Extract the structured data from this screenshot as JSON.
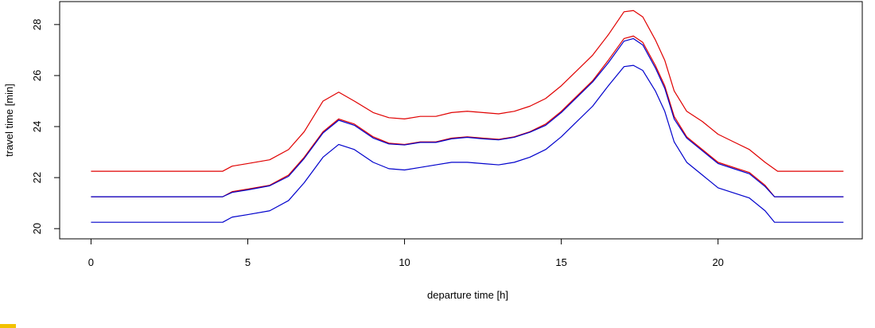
{
  "chart_data": {
    "type": "line",
    "title": "",
    "xlabel": "departure time [h]",
    "ylabel": "travel time [min]",
    "xlim": [
      -1.0,
      24.6
    ],
    "ylim": [
      19.6,
      28.9
    ],
    "xticks": [
      0,
      5,
      10,
      15,
      20
    ],
    "yticks": [
      20,
      22,
      24,
      26,
      28
    ],
    "grid": false,
    "legend": "none",
    "series": [
      {
        "color": "#e00000",
        "x": [
          0,
          4.2,
          4.5,
          5.0,
          5.7,
          6.3,
          6.8,
          7.4,
          7.9,
          8.4,
          9.0,
          9.5,
          10.0,
          10.5,
          11.0,
          11.5,
          12.0,
          12.5,
          13.0,
          13.5,
          14.0,
          14.5,
          15.0,
          15.5,
          16.0,
          16.5,
          17.0,
          17.3,
          17.6,
          18.0,
          18.3,
          18.6,
          19.0,
          19.5,
          20.0,
          20.5,
          21.0,
          21.5,
          21.9,
          24.0
        ],
        "y": [
          22.25,
          22.25,
          22.45,
          22.55,
          22.7,
          23.1,
          23.8,
          25.0,
          25.35,
          25.0,
          24.55,
          24.35,
          24.3,
          24.4,
          24.4,
          24.55,
          24.6,
          24.55,
          24.5,
          24.6,
          24.8,
          25.1,
          25.6,
          26.2,
          26.8,
          27.6,
          28.5,
          28.55,
          28.3,
          27.4,
          26.6,
          25.4,
          24.6,
          24.2,
          23.7,
          23.4,
          23.1,
          22.6,
          22.25,
          22.25
        ]
      },
      {
        "color": "#e00000",
        "x": [
          0,
          4.2,
          4.5,
          5.0,
          5.7,
          6.3,
          6.8,
          7.4,
          7.9,
          8.4,
          9.0,
          9.5,
          10.0,
          10.5,
          11.0,
          11.5,
          12.0,
          12.5,
          13.0,
          13.5,
          14.0,
          14.5,
          15.0,
          15.5,
          16.0,
          16.5,
          17.0,
          17.3,
          17.6,
          18.0,
          18.3,
          18.6,
          19.0,
          19.5,
          20.0,
          20.5,
          21.0,
          21.5,
          21.8,
          24.0
        ],
        "y": [
          21.25,
          21.25,
          21.45,
          21.55,
          21.7,
          22.1,
          22.8,
          23.8,
          24.3,
          24.1,
          23.6,
          23.35,
          23.3,
          23.4,
          23.4,
          23.55,
          23.6,
          23.55,
          23.5,
          23.6,
          23.8,
          24.1,
          24.6,
          25.2,
          25.8,
          26.6,
          27.45,
          27.55,
          27.3,
          26.4,
          25.6,
          24.4,
          23.6,
          23.1,
          22.6,
          22.4,
          22.2,
          21.7,
          21.25,
          21.25
        ]
      },
      {
        "color": "#0000cc",
        "x": [
          0,
          4.2,
          4.5,
          5.0,
          5.7,
          6.3,
          6.8,
          7.4,
          7.9,
          8.4,
          9.0,
          9.5,
          10.0,
          10.5,
          11.0,
          11.5,
          12.0,
          12.5,
          13.0,
          13.5,
          14.0,
          14.5,
          15.0,
          15.5,
          16.0,
          16.5,
          17.0,
          17.3,
          17.6,
          18.0,
          18.3,
          18.6,
          19.0,
          19.5,
          20.0,
          20.5,
          21.0,
          21.5,
          21.8,
          24.0
        ],
        "y": [
          21.25,
          21.25,
          21.42,
          21.52,
          21.68,
          22.05,
          22.75,
          23.75,
          24.25,
          24.05,
          23.55,
          23.32,
          23.28,
          23.38,
          23.38,
          23.52,
          23.58,
          23.52,
          23.48,
          23.58,
          23.78,
          24.05,
          24.55,
          25.15,
          25.75,
          26.5,
          27.35,
          27.45,
          27.2,
          26.3,
          25.5,
          24.3,
          23.55,
          23.05,
          22.55,
          22.35,
          22.15,
          21.65,
          21.25,
          21.25
        ]
      },
      {
        "color": "#0000cc",
        "x": [
          0,
          4.2,
          4.5,
          5.0,
          5.7,
          6.3,
          6.8,
          7.4,
          7.9,
          8.4,
          9.0,
          9.5,
          10.0,
          10.5,
          11.0,
          11.5,
          12.0,
          12.5,
          13.0,
          13.5,
          14.0,
          14.5,
          15.0,
          15.5,
          16.0,
          16.5,
          17.0,
          17.3,
          17.6,
          18.0,
          18.3,
          18.6,
          19.0,
          19.5,
          20.0,
          20.5,
          21.0,
          21.5,
          21.8,
          24.0
        ],
        "y": [
          20.25,
          20.25,
          20.45,
          20.55,
          20.7,
          21.1,
          21.8,
          22.8,
          23.3,
          23.1,
          22.6,
          22.35,
          22.3,
          22.4,
          22.5,
          22.6,
          22.6,
          22.55,
          22.5,
          22.6,
          22.8,
          23.1,
          23.6,
          24.2,
          24.8,
          25.6,
          26.35,
          26.4,
          26.2,
          25.4,
          24.6,
          23.4,
          22.6,
          22.1,
          21.6,
          21.4,
          21.2,
          20.7,
          20.25,
          20.25
        ]
      }
    ]
  },
  "colors": {
    "frame": "#000000",
    "corner_accent": "#f2c200"
  }
}
